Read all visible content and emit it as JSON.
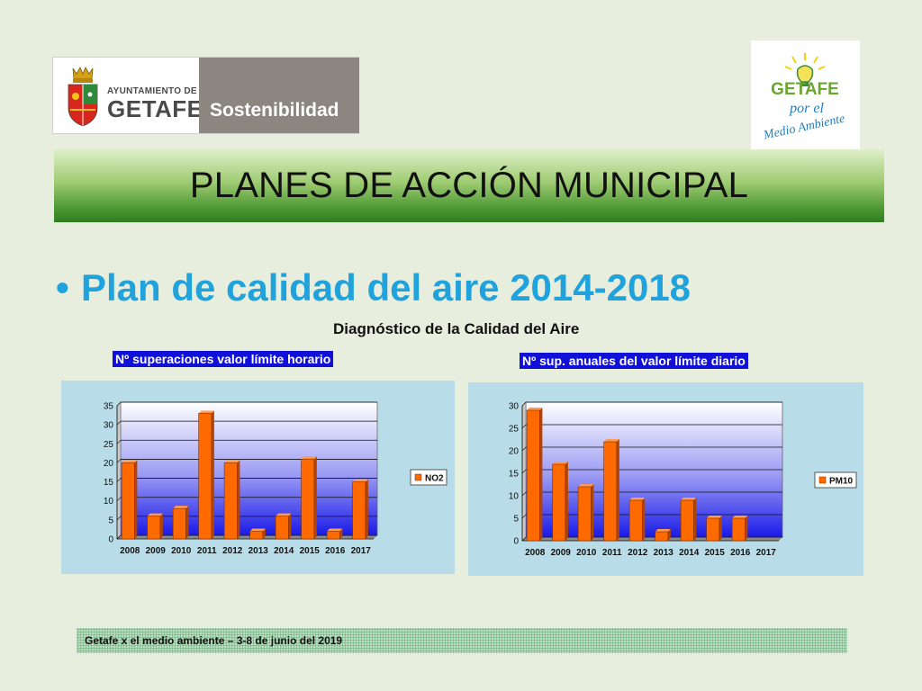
{
  "logo_left": {
    "ayuntamiento": "AYUNTAMIENTO DE",
    "city": "GETAFE",
    "department": "Sostenibilidad"
  },
  "logo_right": {
    "line1": "GETAFE",
    "line2": "por el",
    "line3": "Medio Ambiente"
  },
  "banner": {
    "title": "PLANES DE ACCIÓN MUNICIPAL"
  },
  "bullet": {
    "text": "Plan de calidad del aire 2014-2018"
  },
  "diagnostic_title": "Diagnóstico de la Calidad del Aire",
  "footer": {
    "text": "Getafe x el medio ambiente – 3-8 de junio del 2019"
  },
  "colors": {
    "bar": "#ff6a00",
    "bar_dark": "#b54300",
    "tag_bg": "#1010d8",
    "accent": "#20a2dd"
  },
  "chart_data": [
    {
      "type": "bar",
      "title": "Nº superaciones valor límite horario",
      "categories": [
        "2008",
        "2009",
        "2010",
        "2011",
        "2012",
        "2013",
        "2014",
        "2015",
        "2016",
        "2017"
      ],
      "series": [
        {
          "name": "NO2",
          "values": [
            20,
            6,
            8,
            33,
            20,
            2,
            6,
            21,
            2,
            15
          ]
        }
      ],
      "ylim": [
        0,
        35
      ],
      "yticks": [
        0,
        5,
        10,
        15,
        20,
        25,
        30,
        35
      ],
      "grid": true,
      "legend": "right"
    },
    {
      "type": "bar",
      "title": "Nº sup. anuales del valor límite diario",
      "categories": [
        "2008",
        "2009",
        "2010",
        "2011",
        "2012",
        "2013",
        "2014",
        "2015",
        "2016",
        "2017"
      ],
      "series": [
        {
          "name": "PM10",
          "values": [
            29,
            17,
            12,
            22,
            9,
            2,
            9,
            5,
            5,
            0
          ]
        }
      ],
      "ylim": [
        0,
        30
      ],
      "yticks": [
        0,
        5,
        10,
        15,
        20,
        25,
        30
      ],
      "grid": true,
      "legend": "right"
    }
  ]
}
